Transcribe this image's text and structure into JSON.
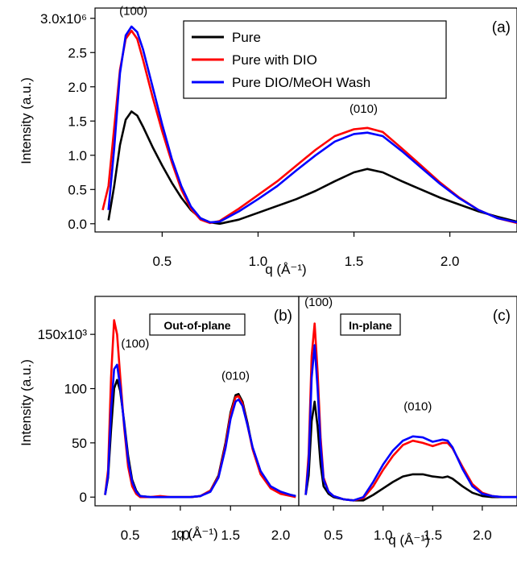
{
  "chart_data": [
    {
      "id": "a",
      "type": "line",
      "panel_label": "(a)",
      "xlabel": "q (Å⁻¹)",
      "ylabel": "Intensity (a.u.)",
      "xlim": [
        0.15,
        2.35
      ],
      "ylim": [
        -0.12,
        3.15
      ],
      "x_ticks": [
        "0.5",
        "1.0",
        "1.5",
        "2.0"
      ],
      "y_ticks": [
        "0.0",
        "0.5",
        "1.0",
        "1.5",
        "2.0",
        "2.5",
        "3.0x10⁶"
      ],
      "y_tick_values": [
        0,
        0.5,
        1.0,
        1.5,
        2.0,
        2.5,
        3.0
      ],
      "x_tick_values": [
        0.5,
        1.0,
        1.5,
        2.0
      ],
      "legend_position": "top-center",
      "annotations": [
        {
          "text": "(100)",
          "x": 0.35,
          "y": 3.05
        },
        {
          "text": "(010)",
          "x": 1.55,
          "y": 1.62
        }
      ],
      "series": [
        {
          "name": "Pure",
          "color": "#000000",
          "x": [
            0.22,
            0.25,
            0.28,
            0.31,
            0.34,
            0.37,
            0.4,
            0.45,
            0.5,
            0.55,
            0.6,
            0.65,
            0.7,
            0.75,
            0.8,
            0.9,
            1.0,
            1.1,
            1.2,
            1.3,
            1.4,
            1.5,
            1.57,
            1.65,
            1.75,
            1.85,
            1.95,
            2.05,
            2.15,
            2.25,
            2.35
          ],
          "y": [
            0.05,
            0.55,
            1.15,
            1.52,
            1.64,
            1.58,
            1.42,
            1.12,
            0.85,
            0.6,
            0.38,
            0.2,
            0.08,
            0.02,
            0.0,
            0.06,
            0.16,
            0.26,
            0.36,
            0.48,
            0.62,
            0.75,
            0.8,
            0.75,
            0.62,
            0.5,
            0.38,
            0.28,
            0.18,
            0.1,
            0.03
          ]
        },
        {
          "name": "Pure with DIO",
          "color": "#ff0000",
          "x": [
            0.19,
            0.22,
            0.25,
            0.28,
            0.31,
            0.34,
            0.37,
            0.4,
            0.45,
            0.5,
            0.55,
            0.6,
            0.65,
            0.7,
            0.75,
            0.8,
            0.9,
            1.0,
            1.1,
            1.2,
            1.3,
            1.4,
            1.5,
            1.57,
            1.65,
            1.75,
            1.85,
            1.95,
            2.05,
            2.15,
            2.25,
            2.35
          ],
          "y": [
            0.2,
            0.55,
            1.4,
            2.25,
            2.7,
            2.82,
            2.7,
            2.4,
            1.85,
            1.35,
            0.9,
            0.5,
            0.22,
            0.06,
            0.01,
            0.04,
            0.22,
            0.42,
            0.62,
            0.85,
            1.08,
            1.28,
            1.38,
            1.4,
            1.34,
            1.1,
            0.85,
            0.6,
            0.38,
            0.2,
            0.08,
            0.01
          ]
        },
        {
          "name": "Pure DIO/MeOH Wash",
          "color": "#0000ff",
          "x": [
            0.22,
            0.25,
            0.28,
            0.31,
            0.34,
            0.37,
            0.4,
            0.45,
            0.5,
            0.55,
            0.6,
            0.65,
            0.7,
            0.75,
            0.8,
            0.9,
            1.0,
            1.1,
            1.2,
            1.3,
            1.4,
            1.5,
            1.57,
            1.65,
            1.75,
            1.85,
            1.95,
            2.05,
            2.15,
            2.25,
            2.35
          ],
          "y": [
            0.2,
            1.1,
            2.2,
            2.75,
            2.88,
            2.8,
            2.55,
            2.0,
            1.45,
            0.95,
            0.55,
            0.25,
            0.08,
            0.02,
            0.03,
            0.18,
            0.36,
            0.55,
            0.78,
            1.0,
            1.2,
            1.31,
            1.33,
            1.28,
            1.06,
            0.82,
            0.58,
            0.37,
            0.2,
            0.08,
            0.02
          ]
        }
      ]
    },
    {
      "id": "b",
      "type": "line",
      "panel_label": "(b)",
      "box_label": "Out-of-plane",
      "xlabel": "q (Å⁻¹)",
      "ylabel": "Intensity (a.u.)",
      "xlim": [
        0.15,
        2.18
      ],
      "ylim": [
        -8,
        185
      ],
      "x_ticks": [
        "0.5",
        "1.0",
        "1.5",
        "2.0"
      ],
      "x_tick_values": [
        0.5,
        1.0,
        1.5,
        2.0
      ],
      "y_ticks": [
        "0",
        "50",
        "100",
        "150x10³"
      ],
      "y_tick_values": [
        0,
        50,
        100,
        150
      ],
      "annotations": [
        {
          "text": "(100)",
          "x": 0.55,
          "y": 138
        },
        {
          "text": "(010)",
          "x": 1.55,
          "y": 108
        }
      ],
      "series": [
        {
          "name": "Pure",
          "color": "#000000",
          "x": [
            0.25,
            0.28,
            0.31,
            0.34,
            0.37,
            0.4,
            0.44,
            0.48,
            0.52,
            0.56,
            0.6,
            0.7,
            0.8,
            0.9,
            1.0,
            1.1,
            1.2,
            1.3,
            1.38,
            1.45,
            1.5,
            1.55,
            1.58,
            1.62,
            1.67,
            1.72,
            1.8,
            1.9,
            2.0,
            2.1,
            2.15
          ],
          "y": [
            2,
            18,
            62,
            100,
            108,
            98,
            70,
            38,
            16,
            6,
            1,
            0,
            0,
            0,
            0,
            0,
            1,
            6,
            20,
            50,
            78,
            94,
            95,
            88,
            68,
            45,
            22,
            9,
            4,
            2,
            1
          ]
        },
        {
          "name": "Pure with DIO",
          "color": "#ff0000",
          "x": [
            0.25,
            0.28,
            0.31,
            0.34,
            0.37,
            0.4,
            0.44,
            0.48,
            0.52,
            0.56,
            0.6,
            0.7,
            0.8,
            0.9,
            1.0,
            1.1,
            1.2,
            1.3,
            1.38,
            1.45,
            1.5,
            1.55,
            1.58,
            1.62,
            1.67,
            1.72,
            1.8,
            1.9,
            2.0,
            2.1,
            2.15
          ],
          "y": [
            2,
            25,
            110,
            163,
            150,
            112,
            65,
            28,
            10,
            3,
            0,
            0,
            1,
            0,
            0,
            0,
            1,
            6,
            19,
            48,
            76,
            92,
            93,
            86,
            66,
            44,
            21,
            8,
            3,
            1,
            0
          ]
        },
        {
          "name": "Pure DIO/MeOH Wash",
          "color": "#0000ff",
          "x": [
            0.25,
            0.28,
            0.31,
            0.34,
            0.37,
            0.4,
            0.44,
            0.48,
            0.52,
            0.56,
            0.6,
            0.7,
            0.8,
            0.9,
            1.0,
            1.1,
            1.2,
            1.3,
            1.38,
            1.45,
            1.5,
            1.55,
            1.58,
            1.62,
            1.67,
            1.72,
            1.8,
            1.9,
            2.0,
            2.1,
            2.15
          ],
          "y": [
            2,
            20,
            80,
            118,
            122,
            102,
            68,
            34,
            14,
            5,
            1,
            0,
            0,
            0,
            0,
            0,
            1,
            5,
            18,
            45,
            72,
            88,
            90,
            84,
            66,
            46,
            24,
            10,
            5,
            2,
            1
          ]
        }
      ]
    },
    {
      "id": "c",
      "type": "line",
      "panel_label": "(c)",
      "box_label": "In-plane",
      "xlabel": "q (Å⁻¹)",
      "xlim": [
        0.15,
        2.35
      ],
      "ylim": [
        -8,
        185
      ],
      "x_ticks": [
        "0.5",
        "1.0",
        "1.5",
        "2.0"
      ],
      "x_tick_values": [
        0.5,
        1.0,
        1.5,
        2.0
      ],
      "annotations": [
        {
          "text": "(100)",
          "x": 0.35,
          "y": 176
        },
        {
          "text": "(010)",
          "x": 1.35,
          "y": 80
        }
      ],
      "series": [
        {
          "name": "Pure",
          "color": "#000000",
          "x": [
            0.22,
            0.25,
            0.28,
            0.31,
            0.34,
            0.37,
            0.4,
            0.45,
            0.5,
            0.6,
            0.7,
            0.8,
            0.9,
            1.0,
            1.1,
            1.2,
            1.3,
            1.4,
            1.5,
            1.6,
            1.65,
            1.7,
            1.8,
            1.9,
            2.0,
            2.1,
            2.2,
            2.3,
            2.35
          ],
          "y": [
            2,
            20,
            70,
            88,
            65,
            30,
            10,
            3,
            0,
            -2,
            -3,
            -3,
            2,
            8,
            14,
            19,
            21,
            21,
            19,
            18,
            19,
            17,
            10,
            4,
            1,
            0,
            0,
            0,
            0
          ]
        },
        {
          "name": "Pure with DIO",
          "color": "#ff0000",
          "x": [
            0.22,
            0.25,
            0.28,
            0.31,
            0.34,
            0.37,
            0.4,
            0.45,
            0.5,
            0.6,
            0.7,
            0.8,
            0.9,
            1.0,
            1.1,
            1.2,
            1.3,
            1.4,
            1.5,
            1.6,
            1.65,
            1.7,
            1.8,
            1.9,
            2.0,
            2.1,
            2.2,
            2.3,
            2.35
          ],
          "y": [
            2,
            40,
            130,
            160,
            115,
            55,
            18,
            5,
            1,
            -2,
            -3,
            -1,
            10,
            25,
            38,
            48,
            52,
            50,
            47,
            50,
            50,
            45,
            28,
            12,
            4,
            1,
            0,
            0,
            0
          ]
        },
        {
          "name": "Pure DIO/MeOH Wash",
          "color": "#0000ff",
          "x": [
            0.22,
            0.25,
            0.28,
            0.31,
            0.34,
            0.37,
            0.4,
            0.45,
            0.5,
            0.6,
            0.7,
            0.8,
            0.9,
            1.0,
            1.1,
            1.2,
            1.3,
            1.4,
            1.5,
            1.6,
            1.65,
            1.7,
            1.8,
            1.9,
            2.0,
            2.1,
            2.2,
            2.3,
            2.35
          ],
          "y": [
            2,
            32,
            110,
            140,
            100,
            48,
            16,
            5,
            1,
            -2,
            -3,
            0,
            14,
            30,
            43,
            52,
            56,
            55,
            51,
            53,
            52,
            46,
            26,
            10,
            3,
            1,
            0,
            0,
            0
          ]
        }
      ]
    }
  ]
}
